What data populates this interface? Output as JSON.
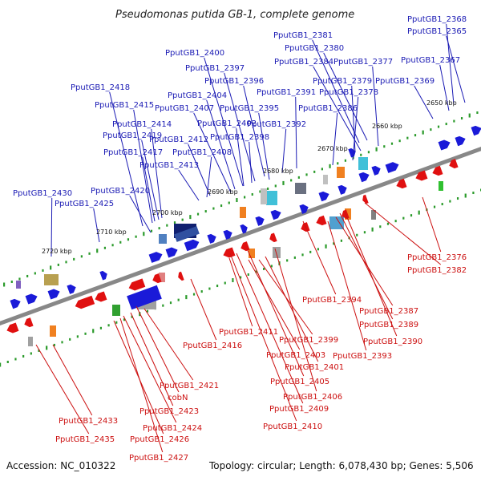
{
  "title": "Pseudomonas putida GB-1, complete genome",
  "footer": {
    "accession": "Accession: NC_010322",
    "summary": "Topology: circular; Length: 6,078,430 bp; Genes: 5,506"
  },
  "colors": {
    "backbone": "#888888",
    "forward_strand": "#1a1ad8",
    "reverse_strand": "#e01010",
    "blue_label": "#1a1ab4",
    "red_label": "#cc1010",
    "tick_dot": "#2a9a2a"
  },
  "ticks": [
    "2650 kbp",
    "2660 kbp",
    "2670 kbp",
    "2680 kbp",
    "2690 kbp",
    "2700 kbp",
    "2710 kbp",
    "2720 kbp"
  ],
  "labels_top": [
    "PputGB1_2368",
    "PputGB1_2365",
    "PputGB1_2381",
    "PputGB1_2380",
    "PputGB1_2400",
    "PputGB1_2384",
    "PputGB1_2377",
    "PputGB1_2367",
    "PputGB1_2397",
    "PputGB1_2396",
    "PputGB1_2379",
    "PputGB1_2369",
    "PputGB1_2418",
    "PputGB1_2404",
    "PputGB1_2391",
    "PputGB1_2378",
    "PputGB1_2415",
    "PputGB1_2407",
    "PputGB1_2395",
    "PputGB1_2386",
    "PputGB1_2414",
    "PputGB1_2402",
    "PputGB1_2392",
    "PputGB1_2419",
    "PputGB1_2412",
    "PputGB1_2398",
    "PputGB1_2417",
    "PputGB1_2408",
    "PputGB1_2413",
    "PputGB1_2420",
    "PputGB1_2430",
    "PputGB1_2425"
  ],
  "labels_bottom": [
    "PputGB1_2376",
    "PputGB1_2382",
    "PputGB1_2394",
    "PputGB1_2387",
    "PputGB1_2389",
    "PputGB1_2390",
    "PputGB1_2411",
    "PputGB1_2399",
    "PputGB1_2416",
    "PputGB1_2403",
    "PputGB1_2393",
    "PputGB1_2401",
    "PputGB1_2405",
    "PputGB1_2421",
    "PputGB1_2406",
    "cobN",
    "PputGB1_2409",
    "PputGB1_2423",
    "PputGB1_2433",
    "PputGB1_2424",
    "PputGB1_2410",
    "PputGB1_2435",
    "PputGB1_2426",
    "PputGB1_2427"
  ]
}
